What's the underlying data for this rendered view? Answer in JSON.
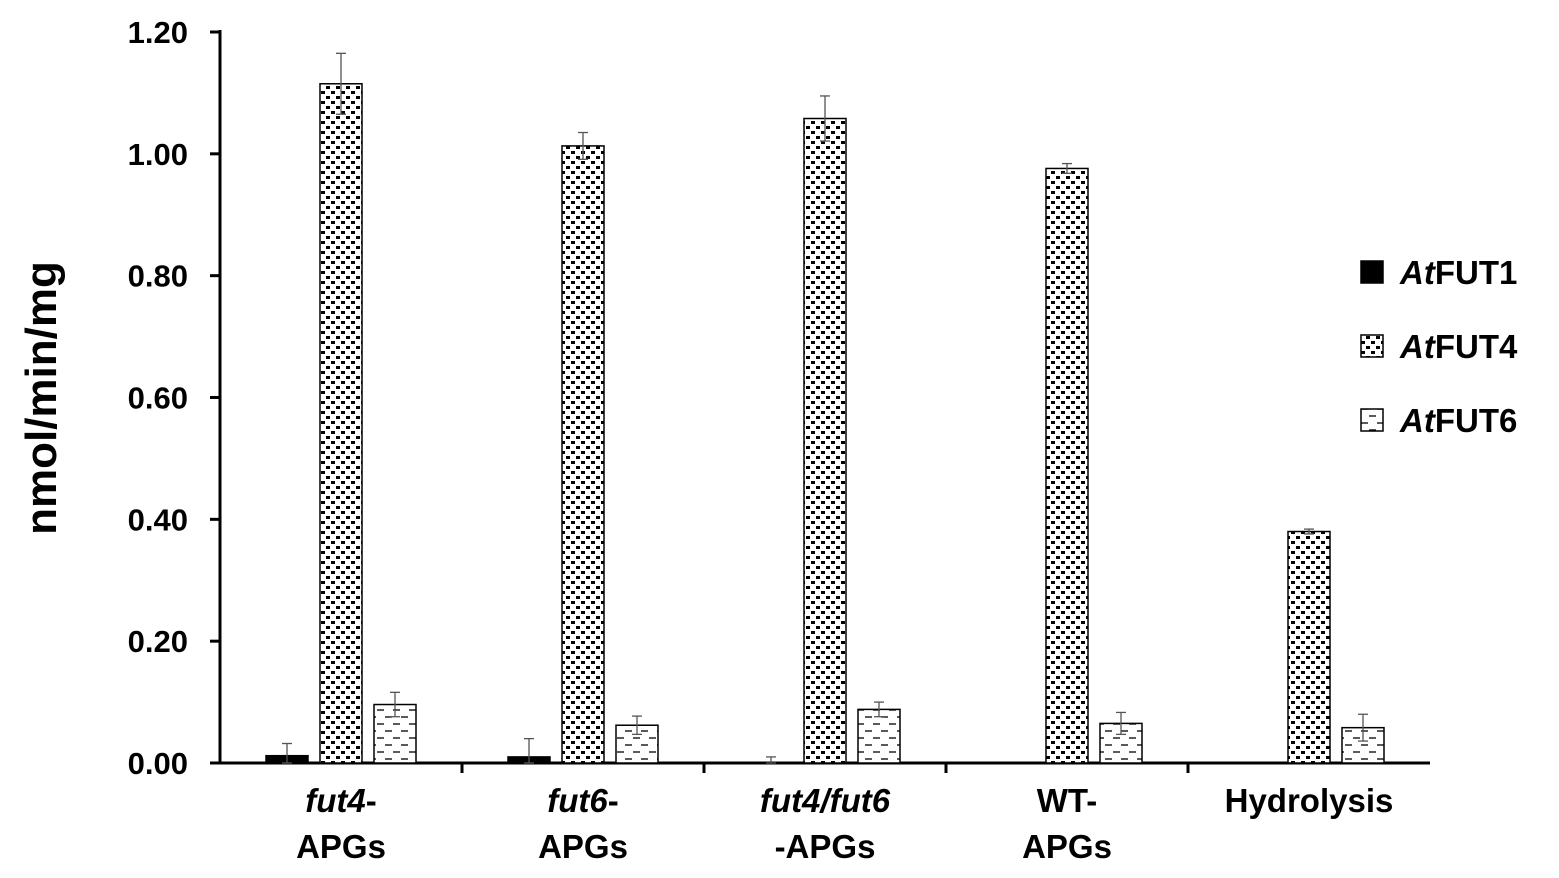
{
  "chart_data": {
    "type": "bar",
    "ylabel": "nmol/min/mg",
    "ylim": [
      0,
      1.2
    ],
    "yticks": [
      "0.00",
      "0.20",
      "0.40",
      "0.60",
      "0.80",
      "1.00",
      "1.20"
    ],
    "categories": [
      {
        "lines": [
          [
            {
              "text": "fut4",
              "italic": true
            },
            {
              "text": "-",
              "italic": false
            }
          ],
          [
            {
              "text": "APGs",
              "italic": false
            }
          ]
        ]
      },
      {
        "lines": [
          [
            {
              "text": "fut6",
              "italic": true
            },
            {
              "text": "-",
              "italic": false
            }
          ],
          [
            {
              "text": "APGs",
              "italic": false
            }
          ]
        ]
      },
      {
        "lines": [
          [
            {
              "text": "fut4/fut6",
              "italic": true
            }
          ],
          [
            {
              "text": "-APGs",
              "italic": false
            }
          ]
        ]
      },
      {
        "lines": [
          [
            {
              "text": "WT-",
              "italic": false
            }
          ],
          [
            {
              "text": "APGs",
              "italic": false
            }
          ]
        ]
      },
      {
        "lines": [
          [
            {
              "text": "Hydrolysis",
              "italic": false
            }
          ]
        ]
      }
    ],
    "series": [
      {
        "name_italic": "At",
        "name_rest": "FUT1",
        "pattern": "solid",
        "values": [
          0.012,
          0.01,
          0.0,
          0.0,
          0.0
        ],
        "errors": [
          0.02,
          0.03,
          0.01,
          0.0,
          0.0
        ]
      },
      {
        "name_italic": "At",
        "name_rest": "FUT4",
        "pattern": "dots",
        "values": [
          1.115,
          1.013,
          1.058,
          0.976,
          0.38
        ],
        "errors": [
          0.05,
          0.022,
          0.037,
          0.008,
          0.004
        ]
      },
      {
        "name_italic": "At",
        "name_rest": "FUT6",
        "pattern": "dashes",
        "values": [
          0.096,
          0.062,
          0.088,
          0.065,
          0.058
        ],
        "errors": [
          0.02,
          0.015,
          0.012,
          0.018,
          0.022
        ]
      }
    ],
    "legend_position": "right",
    "grid": false,
    "colors": {
      "bar_stroke": "#000000",
      "fill_solid": "#000000",
      "background": "#ffffff"
    }
  }
}
